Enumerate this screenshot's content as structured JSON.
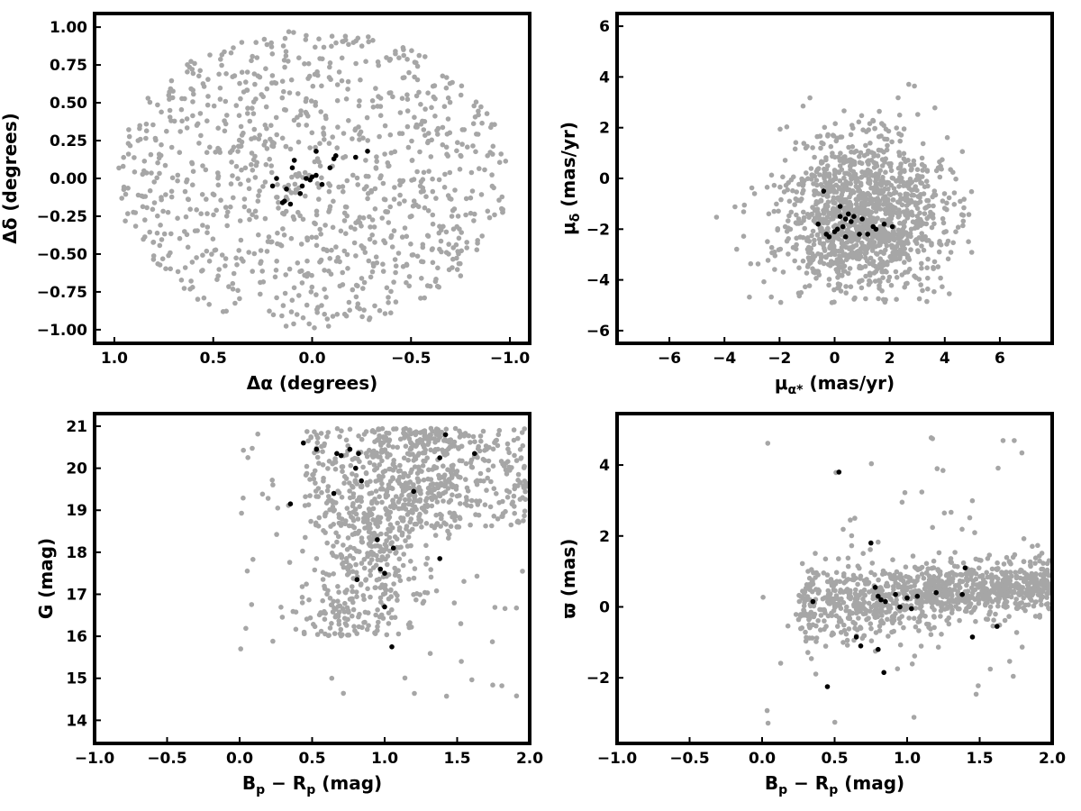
{
  "colors": {
    "field_stars": "#a6a6a6",
    "members": "#000000",
    "frame": "#000000"
  },
  "chart_data": [
    {
      "type": "scatter",
      "panel": "top-left",
      "xlabel": "Δα (degrees)",
      "ylabel": "Δδ (degrees)",
      "xlim": [
        1.1,
        -1.1
      ],
      "ylim": [
        -1.09,
        1.09
      ],
      "xlim_note": "x axis inverted",
      "xticks": [
        1.0,
        0.5,
        0.0,
        -0.5,
        -1.0
      ],
      "xtick_labels": [
        "1.0",
        "0.5",
        "0.0",
        "−0.5",
        "−1.0"
      ],
      "yticks": [
        1.0,
        0.75,
        0.5,
        0.25,
        0.0,
        -0.25,
        -0.5,
        -0.75,
        -1.0
      ],
      "ytick_labels": [
        "1.00",
        "0.75",
        "0.50",
        "0.25",
        "0.00",
        "−0.25",
        "−0.50",
        "−0.75",
        "−1.00"
      ],
      "grid": false,
      "field": {
        "distribution": "uniform_disc",
        "n": 1000,
        "center": [
          0.0,
          0.0
        ],
        "radius": 0.99,
        "seed": 11
      },
      "series": [
        {
          "role": "members",
          "x": [
            0.03,
            0.01,
            0.0,
            -0.02,
            0.05,
            -0.11,
            -0.12,
            -0.09,
            -0.28,
            -0.22,
            -0.02,
            0.09,
            0.11,
            0.15,
            0.13,
            0.06,
            0.1,
            0.2,
            0.18,
            0.14,
            -0.05
          ],
          "y": [
            0.0,
            -0.01,
            0.01,
            0.02,
            -0.05,
            0.13,
            0.15,
            0.07,
            0.18,
            0.14,
            0.18,
            0.12,
            -0.17,
            -0.16,
            -0.07,
            -0.1,
            0.07,
            -0.05,
            0.0,
            -0.15,
            -0.04
          ]
        }
      ]
    },
    {
      "type": "scatter",
      "panel": "top-right",
      "xlabel": "μα* (mas/yr)",
      "ylabel": "μδ (mas/yr)",
      "xlim": [
        -7.9,
        7.9
      ],
      "ylim": [
        -6.5,
        6.5
      ],
      "xticks": [
        -6,
        -4,
        -2,
        0,
        2,
        4,
        6
      ],
      "xtick_labels": [
        "−6",
        "−4",
        "−2",
        "0",
        "2",
        "4",
        "6"
      ],
      "yticks": [
        -6,
        -4,
        -2,
        0,
        2,
        4,
        6
      ],
      "ytick_labels": [
        "−6",
        "−4",
        "−2",
        "0",
        "2",
        "4",
        "6"
      ],
      "grid": false,
      "field": {
        "distribution": "gaussian_clip",
        "n": 1300,
        "center": [
          1.0,
          -1.6
        ],
        "sigma": [
          1.5,
          1.6
        ],
        "clip": [
          [
            -4.5,
            5.0
          ],
          [
            -4.9,
            4.8
          ]
        ],
        "seed": 23,
        "extra": 20,
        "extra_center": [
          0.0,
          0.5
        ],
        "extra_sigma": [
          2.2,
          2.0
        ]
      },
      "series": [
        {
          "role": "members",
          "x": [
            -0.4,
            -0.6,
            -0.2,
            0.0,
            0.2,
            0.3,
            0.4,
            0.5,
            0.6,
            0.2,
            0.9,
            1.0,
            1.2,
            1.4,
            1.5,
            1.8,
            2.1,
            -0.3,
            0.1,
            0.4,
            0.7
          ],
          "y": [
            -0.5,
            -1.8,
            -2.3,
            -2.1,
            -1.5,
            -1.9,
            -1.6,
            -1.4,
            -1.7,
            -1.1,
            -2.2,
            -1.6,
            -2.2,
            -1.9,
            -2.0,
            -1.8,
            -1.9,
            -2.2,
            -2.0,
            -2.3,
            -1.5
          ]
        }
      ]
    },
    {
      "type": "scatter",
      "panel": "bottom-left",
      "xlabel": "Bp − Rp (mag)",
      "ylabel": "G (mag)",
      "xlim": [
        -1.0,
        2.0
      ],
      "ylim": [
        13.45,
        21.3
      ],
      "xticks": [
        -1.0,
        -0.5,
        0.0,
        0.5,
        1.0,
        1.5,
        2.0
      ],
      "xtick_labels": [
        "−1.0",
        "−0.5",
        "0.0",
        "0.5",
        "1.0",
        "1.5",
        "2.0"
      ],
      "yticks": [
        14,
        15,
        16,
        17,
        18,
        19,
        20,
        21
      ],
      "ytick_labels": [
        "14",
        "15",
        "16",
        "17",
        "18",
        "19",
        "20",
        "21"
      ],
      "grid": false,
      "field": {
        "distribution": "cmd",
        "n": 1100,
        "seed": 37
      },
      "series": [
        {
          "role": "members",
          "x": [
            0.44,
            0.53,
            0.67,
            0.7,
            0.76,
            0.82,
            0.8,
            0.84,
            0.65,
            0.35,
            1.2,
            1.38,
            1.42,
            1.62,
            0.95,
            1.06,
            0.97,
            1.0,
            0.81,
            1.38,
            1.0,
            1.05
          ],
          "y": [
            20.6,
            20.45,
            20.35,
            20.3,
            20.45,
            20.35,
            20.0,
            19.7,
            19.4,
            19.15,
            19.45,
            20.25,
            20.8,
            20.35,
            18.3,
            18.1,
            17.6,
            17.5,
            17.35,
            17.85,
            16.7,
            15.75
          ]
        }
      ]
    },
    {
      "type": "scatter",
      "panel": "bottom-right",
      "xlabel": "Bp − Rp (mag)",
      "ylabel": "ϖ (mas)",
      "xlim": [
        -1.0,
        2.0
      ],
      "ylim": [
        -3.85,
        5.45
      ],
      "xticks": [
        -1.0,
        -0.5,
        0.0,
        0.5,
        1.0,
        1.5,
        2.0
      ],
      "xtick_labels": [
        "−1.0",
        "−0.5",
        "0.0",
        "0.5",
        "1.0",
        "1.5",
        "2.0"
      ],
      "yticks": [
        -2,
        0,
        2,
        4
      ],
      "ytick_labels": [
        "−2",
        "0",
        "2",
        "4"
      ],
      "grid": false,
      "field": {
        "distribution": "parallax",
        "n": 1100,
        "seed": 53
      },
      "series": [
        {
          "role": "members",
          "x": [
            0.53,
            0.75,
            0.35,
            0.65,
            0.68,
            0.78,
            0.8,
            0.82,
            0.85,
            0.92,
            0.95,
            1.0,
            1.03,
            1.07,
            1.2,
            1.38,
            1.4,
            1.62,
            0.8,
            0.84,
            1.45,
            0.45
          ],
          "y": [
            3.8,
            1.8,
            0.15,
            -0.85,
            -1.1,
            0.55,
            0.3,
            0.2,
            0.15,
            0.35,
            0.0,
            0.25,
            -0.05,
            0.3,
            0.4,
            0.35,
            1.1,
            -0.55,
            -1.2,
            -1.85,
            -0.85,
            -2.25
          ]
        }
      ]
    }
  ]
}
